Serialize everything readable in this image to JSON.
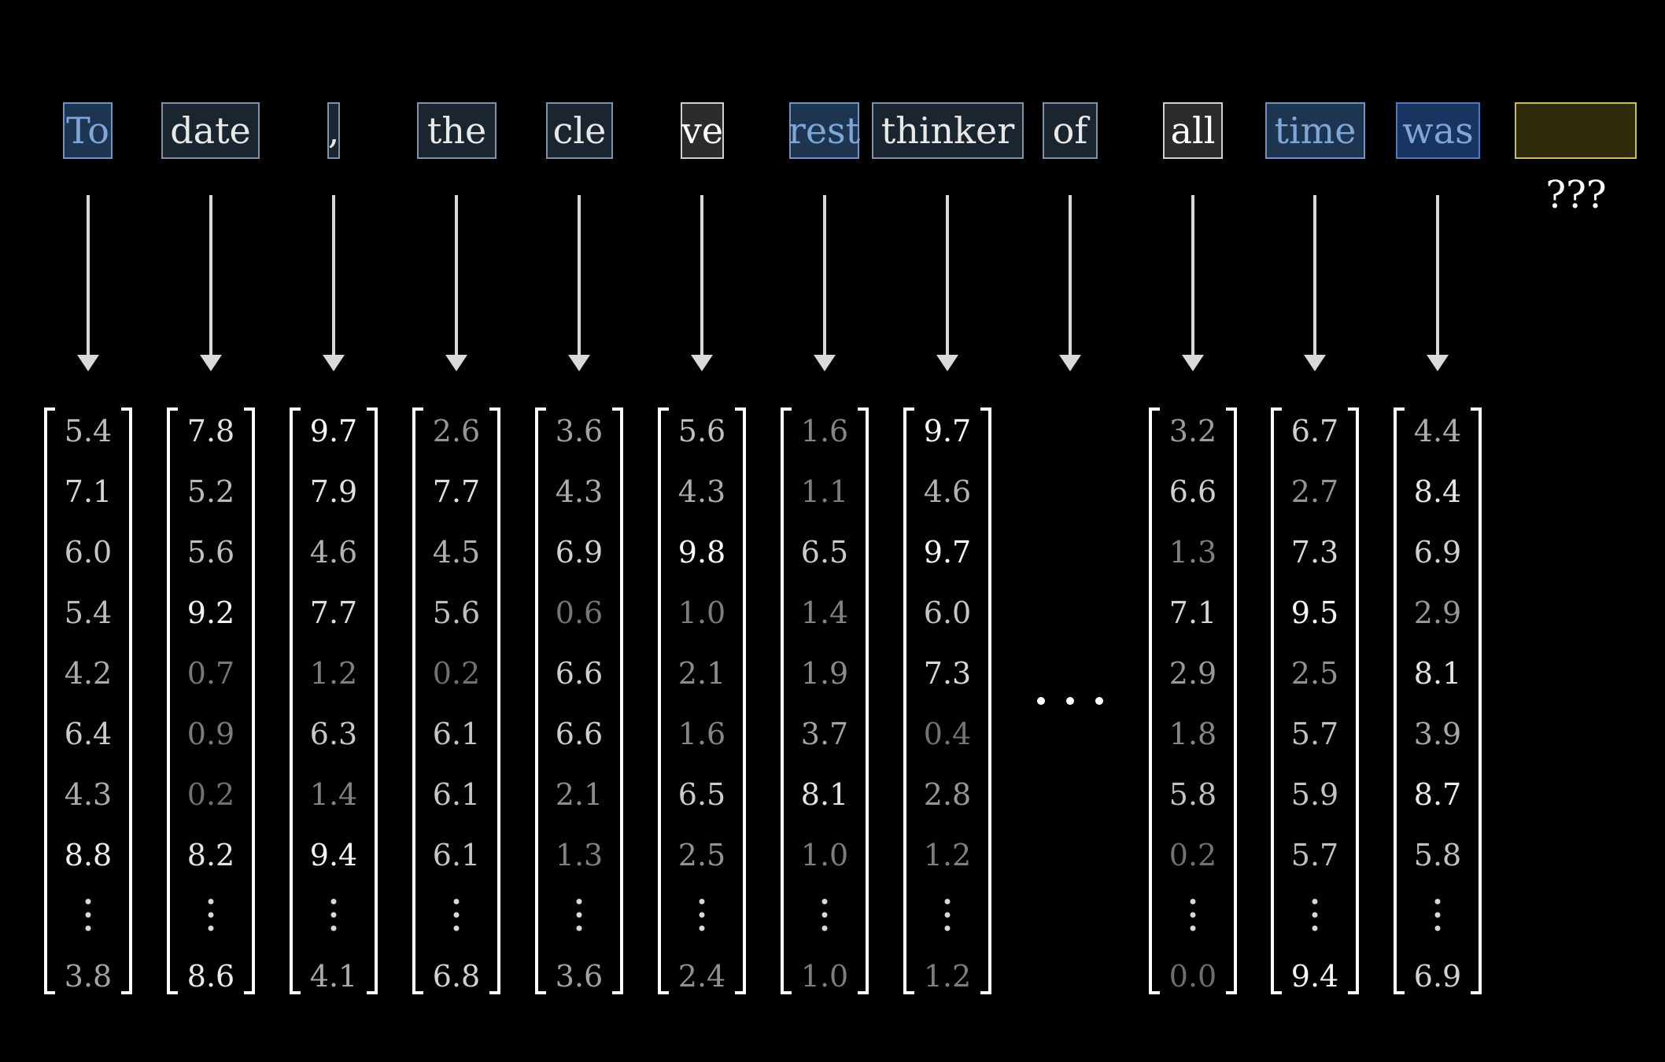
{
  "tokens": [
    {
      "text": "To",
      "style": "blue"
    },
    {
      "text": "date",
      "style": "slate"
    },
    {
      "text": ",",
      "style": "slate"
    },
    {
      "text": "the",
      "style": "slate"
    },
    {
      "text": "cle",
      "style": "slate"
    },
    {
      "text": "ve",
      "style": "gray"
    },
    {
      "text": "rest",
      "style": "blue"
    },
    {
      "text": "thinker",
      "style": "slate"
    },
    {
      "text": "of",
      "style": "slate"
    },
    {
      "text": "all",
      "style": "gray"
    },
    {
      "text": "time",
      "style": "blue"
    },
    {
      "text": "was",
      "style": "deepblue"
    },
    {
      "text": "",
      "style": "yellow"
    }
  ],
  "unknown_label": "???",
  "ellipsis": "· · ·",
  "vdots": "⋮",
  "vectors": [
    {
      "values": [
        "5.4",
        "7.1",
        "6.0",
        "5.4",
        "4.2",
        "6.4",
        "4.3",
        "8.8"
      ],
      "last": "3.8"
    },
    {
      "values": [
        "7.8",
        "5.2",
        "5.6",
        "9.2",
        "0.7",
        "0.9",
        "0.2",
        "8.2"
      ],
      "last": "8.6"
    },
    {
      "values": [
        "9.7",
        "7.9",
        "4.6",
        "7.7",
        "1.2",
        "6.3",
        "1.4",
        "9.4"
      ],
      "last": "4.1"
    },
    {
      "values": [
        "2.6",
        "7.7",
        "4.5",
        "5.6",
        "0.2",
        "6.1",
        "6.1",
        "6.1"
      ],
      "last": "6.8"
    },
    {
      "values": [
        "3.6",
        "4.3",
        "6.9",
        "0.6",
        "6.6",
        "6.6",
        "2.1",
        "1.3"
      ],
      "last": "3.6"
    },
    {
      "values": [
        "5.6",
        "4.3",
        "9.8",
        "1.0",
        "2.1",
        "1.6",
        "6.5",
        "2.5"
      ],
      "last": "2.4"
    },
    {
      "values": [
        "1.6",
        "1.1",
        "6.5",
        "1.4",
        "1.9",
        "3.7",
        "8.1",
        "1.0"
      ],
      "last": "1.0"
    },
    {
      "values": [
        "9.7",
        "4.6",
        "9.7",
        "6.0",
        "7.3",
        "0.4",
        "2.8",
        "1.2"
      ],
      "last": "1.2"
    },
    null,
    {
      "values": [
        "3.2",
        "6.6",
        "1.3",
        "7.1",
        "2.9",
        "1.8",
        "5.8",
        "0.2"
      ],
      "last": "0.0"
    },
    {
      "values": [
        "6.7",
        "2.7",
        "7.3",
        "9.5",
        "2.5",
        "5.7",
        "5.9",
        "5.7"
      ],
      "last": "9.4"
    },
    {
      "values": [
        "4.4",
        "8.4",
        "6.9",
        "2.9",
        "8.1",
        "3.9",
        "8.7",
        "5.8"
      ],
      "last": "6.9"
    }
  ],
  "colors": {
    "background": "#000000",
    "arrow": "#d9d9d9",
    "bracket": "#ffffff",
    "token_text": "#e8e8e8",
    "token_text_blue": "#7ea6d6",
    "box_slate_fill": "#1b2530",
    "box_slate_stroke": "#7d93aa",
    "box_blue_fill": "#1e3552",
    "box_blue_stroke": "#6f93c4",
    "box_deepblue_fill": "#1a3461",
    "box_deepblue_stroke": "#4e78c2",
    "box_gray_fill": "#2b2b2b",
    "box_gray_stroke": "#d0d0d0",
    "box_yellow_fill": "#2e2a0c",
    "box_yellow_stroke": "#c8c04a"
  }
}
